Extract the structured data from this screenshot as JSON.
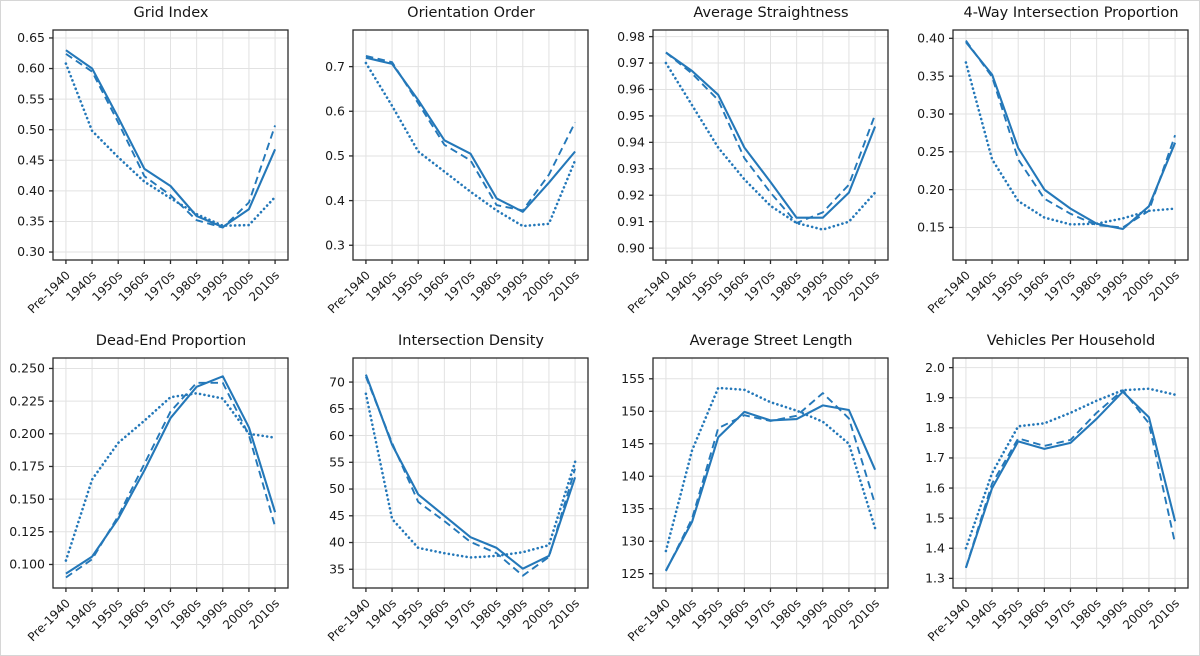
{
  "figure": {
    "background": "#ffffff",
    "border_color": "#d6d6d6"
  },
  "style": {
    "line_color": "#2478b9",
    "grid_color": "#e2e2e2",
    "spine_color": "#2b2b2b",
    "tick_color": "#2b2b2b",
    "text_color": "#1a1a1a"
  },
  "categories": [
    "Pre-1940",
    "1940s",
    "1950s",
    "1960s",
    "1970s",
    "1980s",
    "1990s",
    "2000s",
    "2010s"
  ],
  "chart_data": [
    {
      "type": "line",
      "title": "Grid Index",
      "xlabel": "",
      "ylabel": "",
      "grid": true,
      "legend": "none",
      "ylim": [
        0.287,
        0.663
      ],
      "yticks": [
        0.3,
        0.35,
        0.4,
        0.45,
        0.5,
        0.55,
        0.6,
        0.65
      ],
      "ytick_labels": [
        "0.30",
        "0.35",
        "0.40",
        "0.45",
        "0.50",
        "0.55",
        "0.60",
        "0.65"
      ],
      "series": [
        {
          "name": "solid",
          "style": "solid",
          "values": [
            0.63,
            0.6,
            0.52,
            0.436,
            0.408,
            0.359,
            0.341,
            0.37,
            0.468
          ]
        },
        {
          "name": "dashed",
          "style": "dashed",
          "values": [
            0.624,
            0.595,
            0.512,
            0.424,
            0.393,
            0.352,
            0.34,
            0.381,
            0.507
          ]
        },
        {
          "name": "dotted",
          "style": "dotted",
          "values": [
            0.608,
            0.498,
            0.455,
            0.415,
            0.388,
            0.362,
            0.343,
            0.344,
            0.39
          ]
        }
      ]
    },
    {
      "type": "line",
      "title": "Orientation Order",
      "xlabel": "",
      "ylabel": "",
      "grid": true,
      "legend": "none",
      "ylim": [
        0.267,
        0.782
      ],
      "yticks": [
        0.3,
        0.4,
        0.5,
        0.6,
        0.7
      ],
      "ytick_labels": [
        "0.3",
        "0.4",
        "0.5",
        "0.6",
        "0.7"
      ],
      "series": [
        {
          "name": "solid",
          "style": "solid",
          "values": [
            0.72,
            0.706,
            0.625,
            0.535,
            0.505,
            0.405,
            0.375,
            0.44,
            0.51
          ]
        },
        {
          "name": "dashed",
          "style": "dashed",
          "values": [
            0.724,
            0.71,
            0.618,
            0.525,
            0.49,
            0.39,
            0.378,
            0.458,
            0.575
          ]
        },
        {
          "name": "dotted",
          "style": "dotted",
          "values": [
            0.708,
            0.612,
            0.51,
            0.465,
            0.42,
            0.378,
            0.343,
            0.348,
            0.49
          ]
        }
      ]
    },
    {
      "type": "line",
      "title": "Average Straightness",
      "xlabel": "",
      "ylabel": "",
      "grid": true,
      "legend": "none",
      "ylim": [
        0.8955,
        0.9825
      ],
      "yticks": [
        0.9,
        0.91,
        0.92,
        0.93,
        0.94,
        0.95,
        0.96,
        0.97,
        0.98
      ],
      "ytick_labels": [
        "0.90",
        "0.91",
        "0.92",
        "0.93",
        "0.94",
        "0.95",
        "0.96",
        "0.97",
        "0.98"
      ],
      "series": [
        {
          "name": "solid",
          "style": "solid",
          "values": [
            0.974,
            0.967,
            0.958,
            0.938,
            0.925,
            0.9115,
            0.9115,
            0.921,
            0.946
          ]
        },
        {
          "name": "dashed",
          "style": "dashed",
          "values": [
            0.974,
            0.966,
            0.956,
            0.934,
            0.921,
            0.9095,
            0.9135,
            0.924,
            0.9505
          ]
        },
        {
          "name": "dotted",
          "style": "dotted",
          "values": [
            0.97,
            0.954,
            0.938,
            0.926,
            0.916,
            0.9095,
            0.907,
            0.91,
            0.921
          ]
        }
      ]
    },
    {
      "type": "line",
      "title": "4-Way Intersection Proportion",
      "xlabel": "",
      "ylabel": "",
      "grid": true,
      "legend": "none",
      "ylim": [
        0.107,
        0.411
      ],
      "yticks": [
        0.15,
        0.2,
        0.25,
        0.3,
        0.35,
        0.4
      ],
      "ytick_labels": [
        "0.15",
        "0.20",
        "0.25",
        "0.30",
        "0.35",
        "0.40"
      ],
      "series": [
        {
          "name": "solid",
          "style": "solid",
          "values": [
            0.395,
            0.352,
            0.255,
            0.2,
            0.175,
            0.155,
            0.148,
            0.178,
            0.262
          ]
        },
        {
          "name": "dashed",
          "style": "dashed",
          "values": [
            0.397,
            0.349,
            0.24,
            0.188,
            0.168,
            0.153,
            0.15,
            0.172,
            0.272
          ]
        },
        {
          "name": "dotted",
          "style": "dotted",
          "values": [
            0.368,
            0.24,
            0.185,
            0.163,
            0.154,
            0.155,
            0.162,
            0.172,
            0.175
          ]
        }
      ]
    },
    {
      "type": "line",
      "title": "Dead-End Proportion",
      "xlabel": "",
      "ylabel": "",
      "grid": true,
      "legend": "none",
      "ylim": [
        0.082,
        0.258
      ],
      "yticks": [
        0.1,
        0.125,
        0.15,
        0.175,
        0.2,
        0.225,
        0.25
      ],
      "ytick_labels": [
        "0.100",
        "0.125",
        "0.150",
        "0.175",
        "0.200",
        "0.225",
        "0.250"
      ],
      "series": [
        {
          "name": "solid",
          "style": "solid",
          "values": [
            0.093,
            0.106,
            0.135,
            0.172,
            0.212,
            0.236,
            0.244,
            0.205,
            0.14
          ]
        },
        {
          "name": "dashed",
          "style": "dashed",
          "values": [
            0.09,
            0.104,
            0.137,
            0.177,
            0.217,
            0.239,
            0.239,
            0.199,
            0.129
          ]
        },
        {
          "name": "dotted",
          "style": "dotted",
          "values": [
            0.103,
            0.165,
            0.193,
            0.21,
            0.228,
            0.231,
            0.227,
            0.2,
            0.197
          ]
        }
      ]
    },
    {
      "type": "line",
      "title": "Intersection Density",
      "xlabel": "",
      "ylabel": "",
      "grid": true,
      "legend": "none",
      "ylim": [
        31.5,
        74.5
      ],
      "yticks": [
        35,
        40,
        45,
        50,
        55,
        60,
        65,
        70
      ],
      "ytick_labels": [
        "35",
        "40",
        "45",
        "50",
        "55",
        "60",
        "65",
        "70"
      ],
      "series": [
        {
          "name": "solid",
          "style": "solid",
          "values": [
            71.4,
            58.3,
            49.0,
            45.0,
            41.0,
            39.0,
            35.1,
            37.5,
            52.2
          ]
        },
        {
          "name": "dashed",
          "style": "dashed",
          "values": [
            71.0,
            58.6,
            47.6,
            44.0,
            40.1,
            38.0,
            33.8,
            37.3,
            53.8
          ]
        },
        {
          "name": "dotted",
          "style": "dotted",
          "values": [
            67.8,
            44.4,
            39.0,
            38.0,
            37.2,
            37.5,
            38.2,
            39.5,
            55.1
          ]
        }
      ]
    },
    {
      "type": "line",
      "title": "Average Street Length",
      "xlabel": "",
      "ylabel": "",
      "grid": true,
      "legend": "none",
      "ylim": [
        122.8,
        158.2
      ],
      "yticks": [
        125,
        130,
        135,
        140,
        145,
        150,
        155
      ],
      "ytick_labels": [
        "125",
        "130",
        "135",
        "140",
        "145",
        "150",
        "155"
      ],
      "series": [
        {
          "name": "solid",
          "style": "solid",
          "values": [
            125.5,
            133.0,
            146.0,
            149.9,
            148.6,
            148.8,
            150.9,
            150.2,
            141.0
          ]
        },
        {
          "name": "dashed",
          "style": "dashed",
          "values": [
            125.4,
            133.5,
            147.4,
            149.4,
            148.5,
            149.3,
            152.8,
            148.9,
            135.7
          ]
        },
        {
          "name": "dotted",
          "style": "dotted",
          "values": [
            128.5,
            144.0,
            153.6,
            153.3,
            151.4,
            150.1,
            148.4,
            145.0,
            132.0
          ]
        }
      ]
    },
    {
      "type": "line",
      "title": "Vehicles Per Household",
      "xlabel": "",
      "ylabel": "",
      "grid": true,
      "legend": "none",
      "ylim": [
        1.268,
        2.032
      ],
      "yticks": [
        1.3,
        1.4,
        1.5,
        1.6,
        1.7,
        1.8,
        1.9,
        2.0
      ],
      "ytick_labels": [
        "1.3",
        "1.4",
        "1.5",
        "1.6",
        "1.7",
        "1.8",
        "1.9",
        "2.0"
      ],
      "series": [
        {
          "name": "solid",
          "style": "solid",
          "values": [
            1.335,
            1.6,
            1.755,
            1.73,
            1.75,
            1.83,
            1.92,
            1.835,
            1.49
          ]
        },
        {
          "name": "dashed",
          "style": "dashed",
          "values": [
            1.335,
            1.615,
            1.765,
            1.74,
            1.76,
            1.85,
            1.925,
            1.815,
            1.415
          ]
        },
        {
          "name": "dotted",
          "style": "dotted",
          "values": [
            1.4,
            1.65,
            1.805,
            1.815,
            1.85,
            1.89,
            1.925,
            1.93,
            1.91
          ]
        }
      ]
    }
  ]
}
